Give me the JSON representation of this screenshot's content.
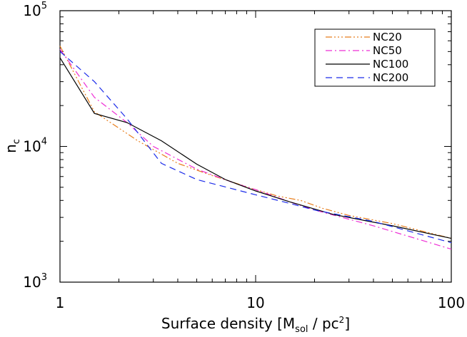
{
  "chart_data": {
    "type": "line",
    "title": "",
    "xlabel": {
      "main": "Surface density [M",
      "sub": "sol",
      "rest": " / pc",
      "sup": "2",
      "end": "]"
    },
    "ylabel": {
      "main": "n",
      "sub": "c"
    },
    "xscale": "log",
    "yscale": "log",
    "xlim": [
      1,
      100
    ],
    "ylim": [
      1000,
      100000
    ],
    "grid": false,
    "legend_position": "top-right",
    "xticks": [
      {
        "value": 1,
        "label": "1"
      },
      {
        "value": 10,
        "label": "10"
      },
      {
        "value": 100,
        "label": "100"
      }
    ],
    "yticks": [
      {
        "value": 1000,
        "base": "10",
        "exp": "3"
      },
      {
        "value": 10000,
        "base": "10",
        "exp": "4"
      },
      {
        "value": 100000,
        "base": "10",
        "exp": "5"
      }
    ],
    "series": [
      {
        "name": "NC20",
        "color": "#e87e1c",
        "dash": "dash-dot-dot-dot",
        "points": [
          [
            1,
            55000
          ],
          [
            1.5,
            18000
          ],
          [
            2.5,
            11000
          ],
          [
            4,
            7500
          ],
          [
            6,
            6100
          ],
          [
            10,
            4800
          ],
          [
            13,
            4300
          ],
          [
            17,
            4000
          ],
          [
            22,
            3500
          ],
          [
            30,
            3100
          ],
          [
            50,
            2700
          ],
          [
            100,
            2100
          ]
        ]
      },
      {
        "name": "NC50",
        "color": "#ee2dd5",
        "dash": "dash-dot",
        "points": [
          [
            1,
            52000
          ],
          [
            1.5,
            23000
          ],
          [
            2.2,
            15000
          ],
          [
            3,
            10000
          ],
          [
            5,
            6800
          ],
          [
            8,
            5300
          ],
          [
            10,
            4800
          ],
          [
            15,
            3900
          ],
          [
            20,
            3400
          ],
          [
            40,
            2600
          ],
          [
            100,
            1750
          ]
        ]
      },
      {
        "name": "NC100",
        "color": "#000000",
        "dash": "solid",
        "points": [
          [
            1,
            45000
          ],
          [
            1.5,
            17500
          ],
          [
            2.2,
            15000
          ],
          [
            3.3,
            11000
          ],
          [
            5,
            7400
          ],
          [
            7,
            5700
          ],
          [
            10,
            4700
          ],
          [
            15,
            3900
          ],
          [
            25,
            3150
          ],
          [
            50,
            2600
          ],
          [
            100,
            2100
          ]
        ]
      },
      {
        "name": "NC200",
        "color": "#1c2cea",
        "dash": "dashed",
        "points": [
          [
            1,
            50000
          ],
          [
            1.5,
            30000
          ],
          [
            2.2,
            16000
          ],
          [
            3.3,
            7500
          ],
          [
            5,
            5700
          ],
          [
            10,
            4400
          ],
          [
            15,
            3800
          ],
          [
            20,
            3400
          ],
          [
            40,
            2800
          ],
          [
            100,
            1950
          ]
        ]
      }
    ]
  }
}
